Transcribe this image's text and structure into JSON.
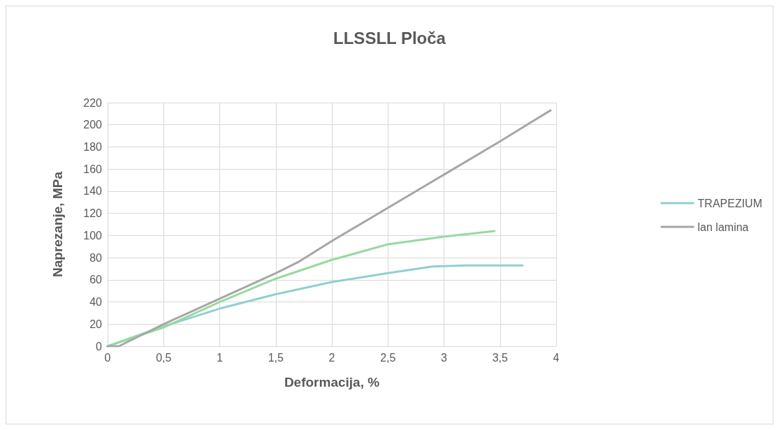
{
  "chart_data": {
    "type": "line",
    "title": "LLSSLL Ploča",
    "xlabel": "Deformacija, %",
    "ylabel": "Naprezanje, MPa",
    "xlim": [
      0,
      4
    ],
    "xticks": [
      0,
      {
        "value": 0.5,
        "label": "0,5"
      },
      1,
      {
        "value": 1.5,
        "label": "1,5"
      },
      2,
      {
        "value": 2.5,
        "label": "2,5"
      },
      3,
      {
        "value": 3.5,
        "label": "3,5"
      },
      4
    ],
    "ylim": [
      0,
      220
    ],
    "yticks": [
      0,
      20,
      40,
      60,
      80,
      100,
      120,
      140,
      160,
      180,
      200,
      220
    ],
    "grid": true,
    "legend": "right",
    "marker": "none",
    "line_style": "solid",
    "series": [
      {
        "name": "TRAPEZIUM",
        "color": "#8fd0cf",
        "x": [
          0,
          0.5,
          1,
          1.5,
          2,
          2.5,
          2.9,
          3.2,
          3.7
        ],
        "values": [
          0,
          18,
          34,
          47,
          58,
          66,
          72,
          73,
          73
        ]
      },
      {
        "color": "#97d9a0",
        "x": [
          0,
          0.5,
          1,
          1.5,
          2,
          2.5,
          3,
          3.45
        ],
        "values": [
          0,
          17,
          40,
          61,
          78,
          92,
          99,
          104
        ]
      },
      {
        "name": "lan lamina",
        "color": "#a6a6a6",
        "x": [
          0,
          0.1,
          0.5,
          1,
          1.5,
          1.7,
          2,
          2.5,
          3,
          3.5,
          3.95
        ],
        "values": [
          0,
          0,
          20,
          43,
          66,
          76,
          95,
          125,
          155,
          185,
          213
        ]
      }
    ]
  }
}
